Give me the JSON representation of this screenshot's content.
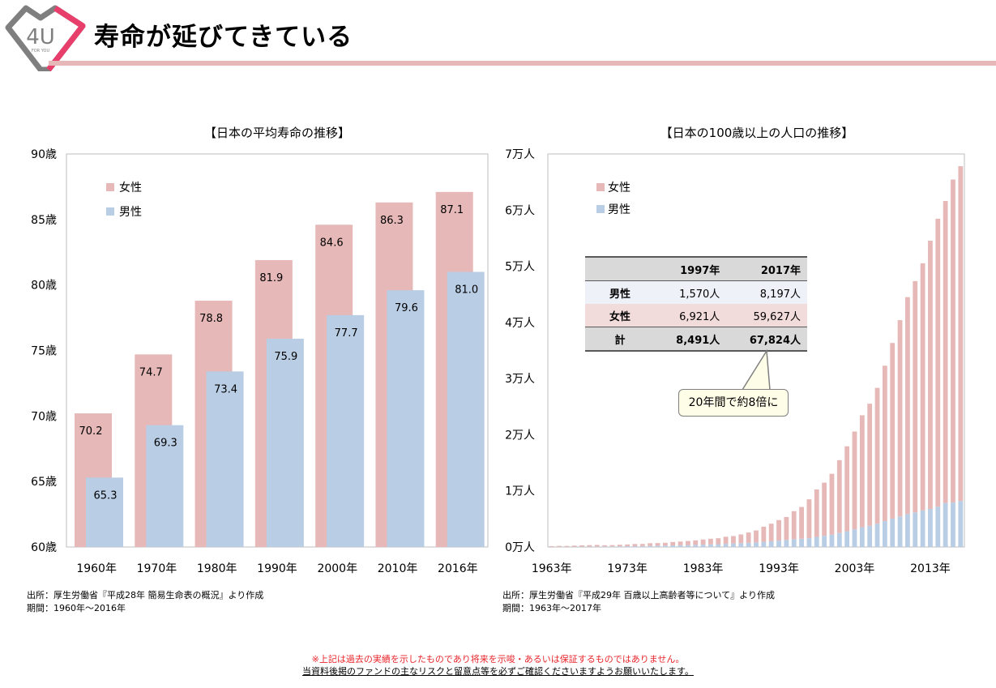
{
  "header": {
    "title": "寿命が延びてきている",
    "logo_text": "4U",
    "logo_subtext": "FOR YOU"
  },
  "colors": {
    "female": "#e6b8b7",
    "male": "#b9cde5",
    "accent": "#e6b8b7",
    "logo_pink": "#e83e6c",
    "logo_gray": "#7f7f7f"
  },
  "chart_data": [
    {
      "type": "bar",
      "title": "【日本の平均寿命の推移】",
      "categories": [
        "1960年",
        "1970年",
        "1980年",
        "1990年",
        "2000年",
        "2010年",
        "2016年"
      ],
      "series": [
        {
          "name": "女性",
          "values": [
            70.2,
            74.7,
            78.8,
            81.9,
            84.6,
            86.3,
            87.1
          ],
          "labels": [
            "70.2",
            "74.7",
            "78.8",
            "81.9",
            "84.6",
            "86.3",
            "87.1"
          ]
        },
        {
          "name": "男性",
          "values": [
            65.3,
            69.3,
            73.4,
            75.9,
            77.7,
            79.6,
            81.0
          ],
          "labels": [
            "65.3",
            "69.3",
            "73.4",
            "75.9",
            "77.7",
            "79.6",
            "81.0"
          ]
        }
      ],
      "ylim": [
        60,
        90
      ],
      "yticks": [
        60,
        65,
        70,
        75,
        80,
        85,
        90
      ],
      "yticklabels": [
        "60歳",
        "65歳",
        "70歳",
        "75歳",
        "80歳",
        "85歳",
        "90歳"
      ],
      "legend_position": "top-left",
      "grid": false
    },
    {
      "type": "bar",
      "stacked": true,
      "title": "【日本の100歳以上の人口の推移】",
      "x": [
        1963,
        1964,
        1965,
        1966,
        1967,
        1968,
        1969,
        1970,
        1971,
        1972,
        1973,
        1974,
        1975,
        1976,
        1977,
        1978,
        1979,
        1980,
        1981,
        1982,
        1983,
        1984,
        1985,
        1986,
        1987,
        1988,
        1989,
        1990,
        1991,
        1992,
        1993,
        1994,
        1995,
        1996,
        1997,
        1998,
        1999,
        2000,
        2001,
        2002,
        2003,
        2004,
        2005,
        2006,
        2007,
        2008,
        2009,
        2010,
        2011,
        2012,
        2013,
        2014,
        2015,
        2016,
        2017
      ],
      "xticklabels": [
        "1963年",
        "1973年",
        "1983年",
        "1993年",
        "2003年",
        "2013年"
      ],
      "xtick_years": [
        1963,
        1973,
        1983,
        1993,
        2003,
        2013
      ],
      "series": [
        {
          "name": "男性",
          "values": [
            20,
            30,
            40,
            50,
            60,
            70,
            80,
            90,
            100,
            120,
            140,
            150,
            170,
            200,
            230,
            250,
            280,
            310,
            340,
            380,
            420,
            460,
            500,
            560,
            620,
            680,
            750,
            820,
            920,
            1020,
            1140,
            1260,
            1400,
            1470,
            1570,
            1800,
            2000,
            2200,
            2500,
            2800,
            3150,
            3520,
            3780,
            4150,
            4610,
            5060,
            5450,
            5870,
            6160,
            6530,
            6790,
            7190,
            7840,
            7920,
            8197
          ]
        },
        {
          "name": "女性",
          "values": [
            130,
            160,
            150,
            200,
            230,
            260,
            290,
            220,
            240,
            280,
            310,
            380,
            370,
            470,
            470,
            500,
            610,
            660,
            730,
            800,
            920,
            1010,
            1060,
            1270,
            1330,
            1560,
            1830,
            2130,
            2700,
            3130,
            3660,
            4090,
            4980,
            5660,
            6921,
            8460,
            9460,
            10840,
            12970,
            15130,
            17410,
            19940,
            21740,
            24190,
            27680,
            31280,
            34950,
            38630,
            41200,
            44000,
            47760,
            51280,
            53780,
            57530,
            59627
          ]
        }
      ],
      "ylim": [
        0,
        70000
      ],
      "yticks": [
        0,
        10000,
        20000,
        30000,
        40000,
        50000,
        60000,
        70000
      ],
      "yticklabels": [
        "0万人",
        "1万人",
        "2万人",
        "3万人",
        "4万人",
        "5万人",
        "6万人",
        "7万人"
      ],
      "legend_position": "top-left",
      "grid": false
    }
  ],
  "table": {
    "header": [
      "",
      "1997年",
      "2017年"
    ],
    "rows": [
      {
        "label": "男性",
        "v1997": "1,570人",
        "v2017": "8,197人"
      },
      {
        "label": "女性",
        "v1997": "6,921人",
        "v2017": "59,627人"
      },
      {
        "label": "計",
        "v1997": "8,491人",
        "v2017": "67,824人"
      }
    ]
  },
  "callout": "20年間で約8倍に",
  "sources": {
    "left_line1": "出所：厚生労働省『平成28年 簡易生命表の概況』より作成",
    "left_line2": "期間：1960年～2016年",
    "right_line1": "出所：厚生労働省『平成29年 百歳以上高齢者等について』より作成",
    "right_line2": "期間：1963年～2017年"
  },
  "disclaimer": {
    "line1": "※上記は過去の実績を示したものであり将来を示唆・あるいは保証するものではありません。",
    "line2": "当資料後掲のファンドの主なリスクと留意点等を必ずご確認くださいますようお願いいたします。"
  }
}
